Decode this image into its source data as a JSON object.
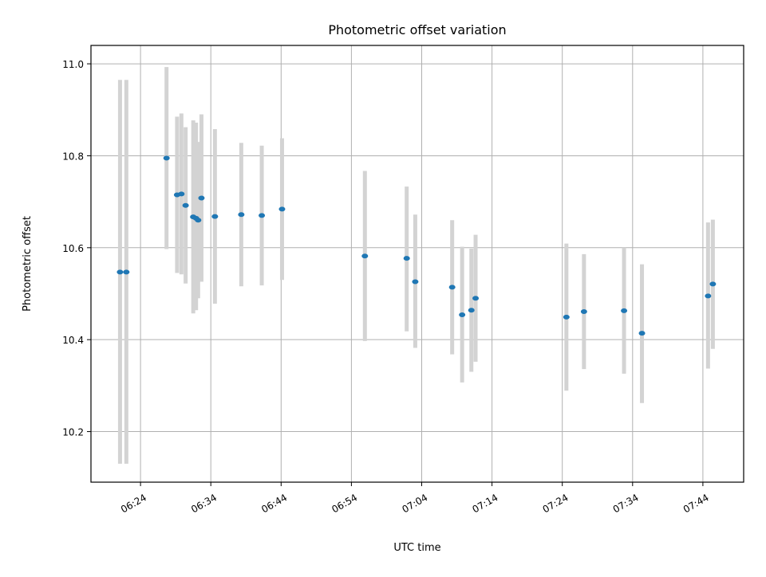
{
  "chart_data": {
    "type": "scatter",
    "title": "Photometric offset variation",
    "xlabel": "UTC time",
    "ylabel": "Photometric offset",
    "x_ticks": [
      "06:24",
      "06:34",
      "06:44",
      "06:54",
      "07:04",
      "07:14",
      "07:24",
      "07:34",
      "07:44"
    ],
    "y_ticks": [
      "10.2",
      "10.4",
      "10.6",
      "10.8",
      "11.0"
    ],
    "xlim": [
      "06:16:57",
      "07:49:48"
    ],
    "ylim": [
      10.09,
      11.04
    ],
    "grid": true,
    "point_color": "#1f77b4",
    "errorbar_color": "#d3d3d3",
    "series": [
      {
        "points": [
          {
            "x": "06:21:05",
            "y": 10.547,
            "yerr_low": 10.13,
            "yerr_high": 10.965
          },
          {
            "x": "06:21:59",
            "y": 10.547,
            "yerr_low": 10.13,
            "yerr_high": 10.965
          },
          {
            "x": "06:27:42",
            "y": 10.795,
            "yerr_low": 10.597,
            "yerr_high": 10.993
          },
          {
            "x": "06:29:12",
            "y": 10.715,
            "yerr_low": 10.545,
            "yerr_high": 10.885
          },
          {
            "x": "06:29:49",
            "y": 10.717,
            "yerr_low": 10.542,
            "yerr_high": 10.892
          },
          {
            "x": "06:30:25",
            "y": 10.692,
            "yerr_low": 10.522,
            "yerr_high": 10.862
          },
          {
            "x": "06:31:30",
            "y": 10.667,
            "yerr_low": 10.457,
            "yerr_high": 10.877
          },
          {
            "x": "06:31:54",
            "y": 10.664,
            "yerr_low": 10.464,
            "yerr_high": 10.872
          },
          {
            "x": "06:32:12",
            "y": 10.66,
            "yerr_low": 10.49,
            "yerr_high": 10.83
          },
          {
            "x": "06:32:40",
            "y": 10.708,
            "yerr_low": 10.526,
            "yerr_high": 10.89
          },
          {
            "x": "06:34:35",
            "y": 10.668,
            "yerr_low": 10.478,
            "yerr_high": 10.858
          },
          {
            "x": "06:38:20",
            "y": 10.672,
            "yerr_low": 10.516,
            "yerr_high": 10.828
          },
          {
            "x": "06:41:15",
            "y": 10.67,
            "yerr_low": 10.518,
            "yerr_high": 10.822
          },
          {
            "x": "06:44:08",
            "y": 10.684,
            "yerr_low": 10.53,
            "yerr_high": 10.838
          },
          {
            "x": "06:55:55",
            "y": 10.582,
            "yerr_low": 10.397,
            "yerr_high": 10.767
          },
          {
            "x": "07:01:52",
            "y": 10.577,
            "yerr_low": 10.418,
            "yerr_high": 10.733
          },
          {
            "x": "07:03:05",
            "y": 10.526,
            "yerr_low": 10.382,
            "yerr_high": 10.672
          },
          {
            "x": "07:08:20",
            "y": 10.514,
            "yerr_low": 10.368,
            "yerr_high": 10.66
          },
          {
            "x": "07:09:45",
            "y": 10.454,
            "yerr_low": 10.307,
            "yerr_high": 10.602
          },
          {
            "x": "07:11:04",
            "y": 10.464,
            "yerr_low": 10.33,
            "yerr_high": 10.598
          },
          {
            "x": "07:11:40",
            "y": 10.49,
            "yerr_low": 10.352,
            "yerr_high": 10.628
          },
          {
            "x": "07:24:35",
            "y": 10.449,
            "yerr_low": 10.289,
            "yerr_high": 10.609
          },
          {
            "x": "07:27:05",
            "y": 10.461,
            "yerr_low": 10.336,
            "yerr_high": 10.586
          },
          {
            "x": "07:32:47",
            "y": 10.463,
            "yerr_low": 10.326,
            "yerr_high": 10.6
          },
          {
            "x": "07:35:20",
            "y": 10.414,
            "yerr_low": 10.262,
            "yerr_high": 10.564
          },
          {
            "x": "07:44:44",
            "y": 10.495,
            "yerr_low": 10.337,
            "yerr_high": 10.655
          },
          {
            "x": "07:45:25",
            "y": 10.521,
            "yerr_low": 10.38,
            "yerr_high": 10.661
          }
        ]
      }
    ]
  }
}
